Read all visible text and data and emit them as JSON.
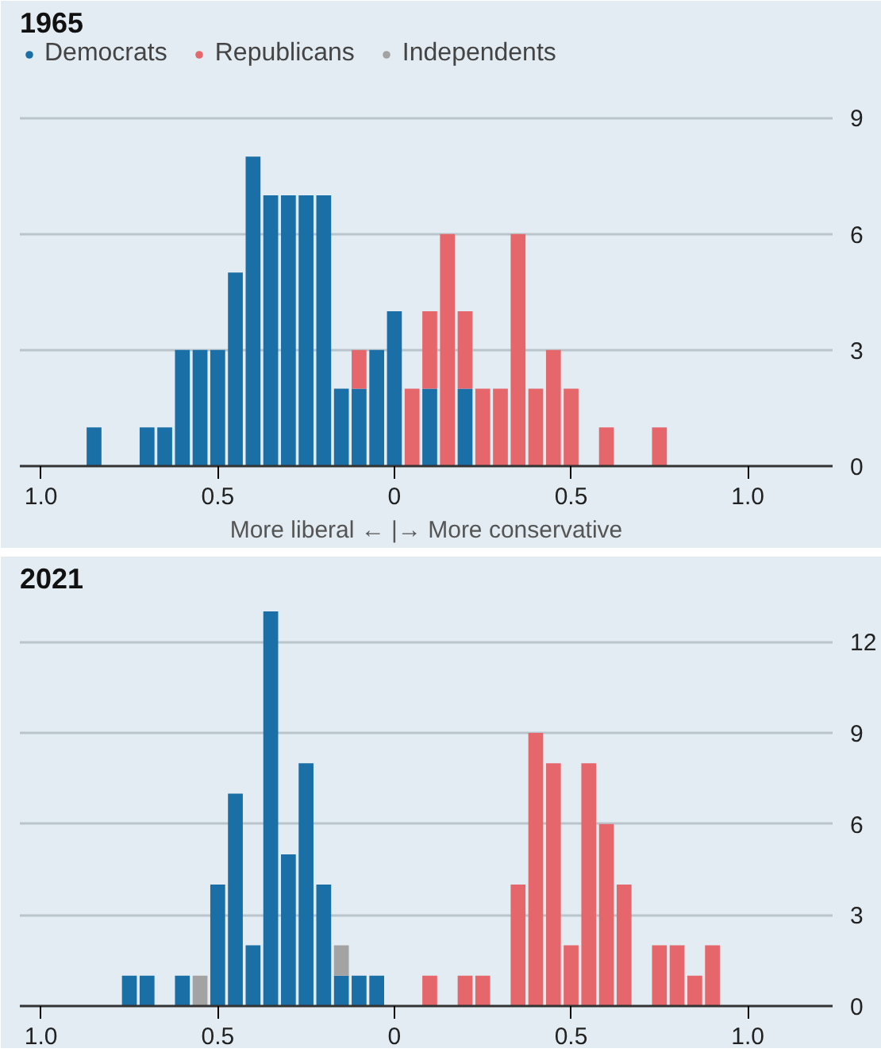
{
  "chart_data": [
    {
      "type": "bar",
      "stacked": true,
      "title": "1965",
      "xlabel": "More liberal ← |→ More conservative",
      "legend": "top",
      "grid": "y",
      "x": [
        -0.85,
        -0.7,
        -0.65,
        -0.6,
        -0.55,
        -0.5,
        -0.45,
        -0.4,
        -0.35,
        -0.3,
        -0.25,
        -0.2,
        -0.15,
        -0.1,
        -0.05,
        0,
        0.05,
        0.1,
        0.15,
        0.2,
        0.25,
        0.3,
        0.35,
        0.4,
        0.45,
        0.5,
        0.6,
        0.75
      ],
      "series": [
        {
          "name": "Democrats",
          "color": "#1a6fa6",
          "values": [
            1,
            1,
            1,
            3,
            3,
            3,
            5,
            8,
            7,
            7,
            7,
            7,
            2,
            2,
            3,
            4,
            null,
            2,
            null,
            2,
            null,
            null,
            null,
            null,
            null,
            null,
            null,
            null
          ]
        },
        {
          "name": "Republicans",
          "color": "#e5676c",
          "values": [
            null,
            null,
            null,
            null,
            null,
            null,
            null,
            null,
            null,
            null,
            null,
            null,
            null,
            1,
            null,
            null,
            2,
            2,
            6,
            2,
            2,
            2,
            6,
            2,
            3,
            2,
            1,
            1
          ]
        },
        {
          "name": "Independents",
          "color": "#a3a3a3",
          "values": [
            null,
            null,
            null,
            null,
            null,
            null,
            null,
            null,
            null,
            null,
            null,
            null,
            null,
            null,
            null,
            null,
            null,
            null,
            null,
            null,
            null,
            null,
            null,
            null,
            null,
            null,
            null,
            null
          ]
        }
      ],
      "xlim": [
        -1.06,
        1.24
      ],
      "ylim": [
        0,
        11
      ],
      "xticks": [
        {
          "value": -1,
          "label": "1.0"
        },
        {
          "value": -0.5,
          "label": "0.5"
        },
        0,
        0.5,
        {
          "value": 1,
          "label": "1.0"
        }
      ],
      "yticks": [
        0,
        3,
        6,
        9
      ]
    },
    {
      "type": "bar",
      "stacked": true,
      "title": "2021",
      "grid": "y",
      "x": [
        -0.75,
        -0.7,
        -0.6,
        -0.55,
        -0.5,
        -0.45,
        -0.4,
        -0.35,
        -0.3,
        -0.25,
        -0.2,
        -0.15,
        -0.1,
        -0.05,
        0.1,
        0.2,
        0.25,
        0.35,
        0.4,
        0.45,
        0.5,
        0.55,
        0.6,
        0.65,
        0.75,
        0.8,
        0.85,
        0.9
      ],
      "series": [
        {
          "color": "#1a6fa6",
          "values": [
            1,
            1,
            1,
            null,
            4,
            7,
            2,
            13,
            5,
            8,
            4,
            1,
            1,
            1,
            null,
            null,
            null,
            null,
            null,
            null,
            null,
            null,
            null,
            null,
            null,
            null,
            null,
            null
          ]
        },
        {
          "color": "#e5676c",
          "values": [
            null,
            null,
            null,
            null,
            null,
            null,
            null,
            null,
            null,
            null,
            null,
            null,
            null,
            null,
            1,
            1,
            1,
            4,
            9,
            8,
            2,
            8,
            6,
            4,
            2,
            2,
            1,
            2
          ]
        },
        {
          "color": "#a3a3a3",
          "values": [
            null,
            null,
            null,
            1,
            null,
            null,
            null,
            null,
            null,
            null,
            null,
            1,
            null,
            null,
            null,
            null,
            null,
            null,
            null,
            null,
            null,
            null,
            null,
            null,
            null,
            null,
            null,
            null
          ]
        }
      ],
      "xlim": [
        -1.06,
        1.24
      ],
      "ylim": [
        0,
        13.5
      ],
      "xticks": [
        {
          "value": -1,
          "label": "1.0"
        },
        {
          "value": -0.5,
          "label": "0.5"
        },
        0,
        0.5,
        {
          "value": 1,
          "label": "1.0"
        }
      ],
      "yticks": [
        0,
        3,
        6,
        9,
        12
      ]
    }
  ]
}
